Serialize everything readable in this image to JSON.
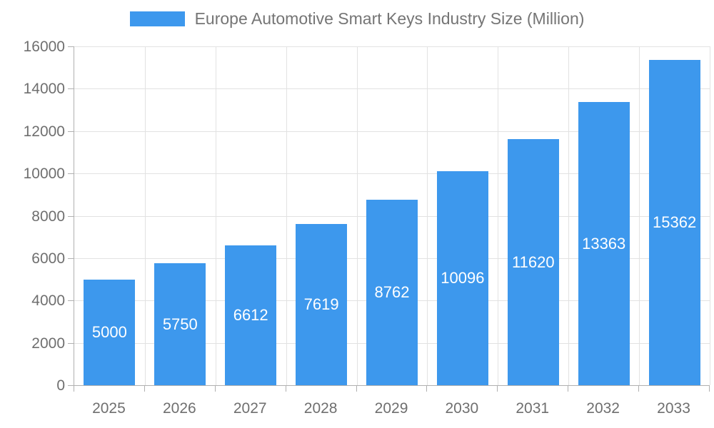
{
  "legend": {
    "label": "Europe Automotive Smart Keys Industry Size (Million)"
  },
  "chart_data": {
    "type": "bar",
    "title": "Europe Automotive Smart Keys Industry Size (Million)",
    "categories": [
      "2025",
      "2026",
      "2027",
      "2028",
      "2029",
      "2030",
      "2031",
      "2032",
      "2033"
    ],
    "values": [
      5000,
      5750,
      6612,
      7619,
      8762,
      10096,
      11620,
      13363,
      15362
    ],
    "xlabel": "",
    "ylabel": "",
    "ylim": [
      0,
      16000
    ],
    "ytick_step": 2000,
    "grid": true,
    "legend_position": "top-center",
    "colors": {
      "bar": "#3d98ed",
      "bar_value_label": "#ffffff",
      "axis_text": "#6f6f6f",
      "title_text": "#757575",
      "gridline": "#e2e2e2",
      "axis_line": "#b0b0b0"
    }
  }
}
